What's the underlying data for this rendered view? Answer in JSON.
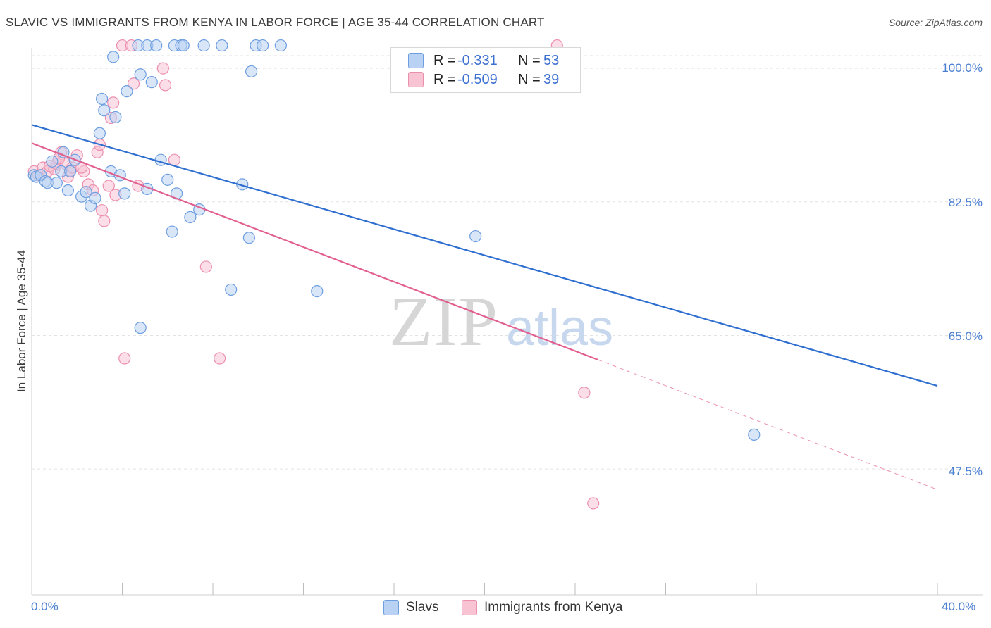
{
  "title": "SLAVIC VS IMMIGRANTS FROM KENYA IN LABOR FORCE | AGE 35-44 CORRELATION CHART",
  "source": "Source: ZipAtlas.com",
  "watermark": {
    "zip": "ZIP",
    "atlas": "atlas"
  },
  "colors": {
    "slavs_fill": "#b9d1f2",
    "slavs_stroke": "#6d9ee0",
    "slavs_line": "#2f6fd0",
    "kenya_fill": "#f8c3d3",
    "kenya_stroke": "#ec8fae",
    "kenya_line": "#e2608f",
    "grid": "#e3e3e3",
    "axis_text": "#4a7fd1"
  },
  "legend": {
    "rows": [
      {
        "r_label": "R =",
        "r_value": "-0.331",
        "n_label": "N =",
        "n_value": "53"
      },
      {
        "r_label": "R =",
        "r_value": "-0.509",
        "n_label": "N =",
        "n_value": "39"
      }
    ]
  },
  "bottom_legend": {
    "slavs": "Slavs",
    "kenya": "Immigrants from Kenya"
  },
  "chart_data": {
    "type": "scatter",
    "title": "SLAVIC VS IMMIGRANTS FROM KENYA IN LABOR FORCE | AGE 35-44 CORRELATION CHART",
    "xlabel": "",
    "ylabel": "In Labor Force | Age 35-44",
    "xlim": [
      0,
      40
    ],
    "ylim": [
      31,
      102.5
    ],
    "x_tick_labels": [
      "0.0%",
      "40.0%"
    ],
    "y_ticks": [
      100.0,
      82.5,
      65.0,
      47.5
    ],
    "y_tick_labels": [
      "100.0%",
      "82.5%",
      "65.0%",
      "47.5%"
    ],
    "grid": true,
    "legend_position": "top-center",
    "series": [
      {
        "name": "Slavs",
        "r": -0.331,
        "n": 53,
        "trend": {
          "x": [
            0,
            40
          ],
          "y": [
            92.6,
            58.4
          ],
          "solid_until": 40
        },
        "points": [
          [
            0.1,
            86.0
          ],
          [
            0.2,
            85.8
          ],
          [
            0.4,
            86.0
          ],
          [
            0.6,
            85.2
          ],
          [
            0.7,
            85.0
          ],
          [
            0.9,
            87.8
          ],
          [
            1.1,
            85.0
          ],
          [
            1.3,
            86.5
          ],
          [
            1.4,
            89.0
          ],
          [
            1.6,
            84.0
          ],
          [
            1.7,
            86.5
          ],
          [
            1.9,
            88.0
          ],
          [
            2.2,
            83.2
          ],
          [
            2.4,
            83.8
          ],
          [
            2.6,
            82.0
          ],
          [
            2.8,
            83.0
          ],
          [
            3.1,
            96.0
          ],
          [
            3.2,
            94.5
          ],
          [
            3.5,
            86.5
          ],
          [
            3.6,
            101.5
          ],
          [
            3.7,
            93.6
          ],
          [
            3.9,
            86.0
          ],
          [
            4.1,
            83.6
          ],
          [
            4.2,
            97.0
          ],
          [
            4.7,
            103.0
          ],
          [
            4.8,
            99.2
          ],
          [
            5.1,
            103.0
          ],
          [
            5.3,
            98.2
          ],
          [
            5.5,
            103.0
          ],
          [
            5.7,
            88.0
          ],
          [
            6.0,
            85.4
          ],
          [
            6.2,
            78.6
          ],
          [
            6.3,
            103.0
          ],
          [
            6.4,
            83.6
          ],
          [
            6.6,
            103.0
          ],
          [
            6.7,
            103.0
          ],
          [
            7.0,
            80.5
          ],
          [
            7.4,
            81.5
          ],
          [
            7.6,
            103.0
          ],
          [
            8.4,
            103.0
          ],
          [
            8.8,
            71.0
          ],
          [
            9.3,
            84.8
          ],
          [
            9.6,
            77.8
          ],
          [
            9.7,
            99.6
          ],
          [
            9.9,
            103.0
          ],
          [
            10.2,
            103.0
          ],
          [
            11.0,
            103.0
          ],
          [
            12.6,
            70.8
          ],
          [
            19.6,
            78.0
          ],
          [
            31.9,
            52.0
          ],
          [
            4.8,
            66.0
          ],
          [
            3.0,
            91.5
          ],
          [
            5.1,
            84.2
          ]
        ]
      },
      {
        "name": "Immigrants from Kenya",
        "r": -0.509,
        "n": 39,
        "trend": {
          "x": [
            0,
            40
          ],
          "y": [
            90.2,
            44.8
          ],
          "solid_until": 25
        },
        "points": [
          [
            0.1,
            86.5
          ],
          [
            0.3,
            86.0
          ],
          [
            0.5,
            87.0
          ],
          [
            0.7,
            86.5
          ],
          [
            0.8,
            87.2
          ],
          [
            1.0,
            86.8
          ],
          [
            1.1,
            87.5
          ],
          [
            1.3,
            89.0
          ],
          [
            1.5,
            87.5
          ],
          [
            1.6,
            85.8
          ],
          [
            1.7,
            86.6
          ],
          [
            1.8,
            87.0
          ],
          [
            2.0,
            88.6
          ],
          [
            2.3,
            86.5
          ],
          [
            2.5,
            84.8
          ],
          [
            2.7,
            84.0
          ],
          [
            2.9,
            89.0
          ],
          [
            3.1,
            81.4
          ],
          [
            3.2,
            80.0
          ],
          [
            3.4,
            84.6
          ],
          [
            3.5,
            93.5
          ],
          [
            3.6,
            95.5
          ],
          [
            3.7,
            83.4
          ],
          [
            4.0,
            103.0
          ],
          [
            4.1,
            62.0
          ],
          [
            4.4,
            103.0
          ],
          [
            4.5,
            98.0
          ],
          [
            4.7,
            84.6
          ],
          [
            5.8,
            100.0
          ],
          [
            5.9,
            97.8
          ],
          [
            6.3,
            88.0
          ],
          [
            7.7,
            74.0
          ],
          [
            8.3,
            62.0
          ],
          [
            24.4,
            57.5
          ],
          [
            24.8,
            43.0
          ],
          [
            23.2,
            103.0
          ],
          [
            1.2,
            88.2
          ],
          [
            2.2,
            87.0
          ],
          [
            3.0,
            90.0
          ]
        ]
      }
    ]
  }
}
